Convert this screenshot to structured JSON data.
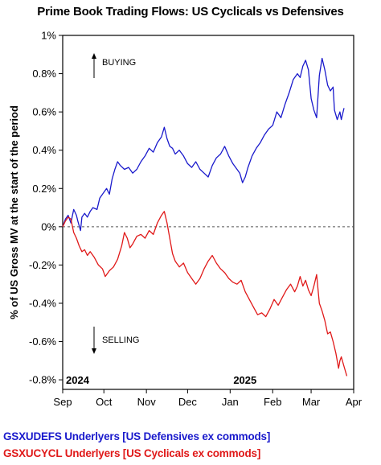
{
  "chart_data": {
    "type": "line",
    "title": "Prime Book Trading Flows: US Cyclicals vs Defensives",
    "ylabel": "% of US Gross MV at the start of the period",
    "xlabel": "",
    "x_ticks": [
      "Sep",
      "Oct",
      "Nov",
      "Dec",
      "Jan",
      "Feb",
      "Mar",
      "Apr"
    ],
    "year_labels": [
      "2024",
      "2025"
    ],
    "y_ticks": [
      "1%",
      "0.8%",
      "0.6%",
      "0.4%",
      "0.2%",
      "0%",
      "-0.2%",
      "-0.4%",
      "-0.6%",
      "-0.8%"
    ],
    "ylim": [
      -0.85,
      1.0
    ],
    "xlim": [
      "2024-09-01",
      "2025-04-01"
    ],
    "grid": false,
    "legend_position": "bottom",
    "annotations": [
      {
        "text": "BUYING",
        "direction": "up"
      },
      {
        "text": "SELLING",
        "direction": "down"
      }
    ],
    "series": [
      {
        "name": "GSXUDEFS Underlyers [US Defensives ex commods]",
        "color": "#1a1acc",
        "points": [
          [
            "2024-09-01",
            0.0
          ],
          [
            "2024-09-03",
            0.04
          ],
          [
            "2024-09-05",
            0.06
          ],
          [
            "2024-09-07",
            0.02
          ],
          [
            "2024-09-09",
            0.09
          ],
          [
            "2024-09-11",
            0.06
          ],
          [
            "2024-09-12",
            0.03
          ],
          [
            "2024-09-14",
            -0.02
          ],
          [
            "2024-09-15",
            0.05
          ],
          [
            "2024-09-17",
            0.07
          ],
          [
            "2024-09-19",
            0.05
          ],
          [
            "2024-09-21",
            0.08
          ],
          [
            "2024-09-23",
            0.1
          ],
          [
            "2024-09-26",
            0.09
          ],
          [
            "2024-09-28",
            0.15
          ],
          [
            "2024-10-01",
            0.18
          ],
          [
            "2024-10-03",
            0.2
          ],
          [
            "2024-10-05",
            0.17
          ],
          [
            "2024-10-07",
            0.25
          ],
          [
            "2024-10-09",
            0.3
          ],
          [
            "2024-10-11",
            0.34
          ],
          [
            "2024-10-13",
            0.32
          ],
          [
            "2024-10-16",
            0.3
          ],
          [
            "2024-10-19",
            0.31
          ],
          [
            "2024-10-22",
            0.28
          ],
          [
            "2024-10-25",
            0.3
          ],
          [
            "2024-10-28",
            0.34
          ],
          [
            "2024-10-31",
            0.37
          ],
          [
            "2024-11-03",
            0.41
          ],
          [
            "2024-11-06",
            0.39
          ],
          [
            "2024-11-09",
            0.44
          ],
          [
            "2024-11-12",
            0.47
          ],
          [
            "2024-11-14",
            0.52
          ],
          [
            "2024-11-16",
            0.46
          ],
          [
            "2024-11-18",
            0.42
          ],
          [
            "2024-11-20",
            0.41
          ],
          [
            "2024-11-22",
            0.38
          ],
          [
            "2024-11-25",
            0.4
          ],
          [
            "2024-11-28",
            0.37
          ],
          [
            "2024-12-01",
            0.33
          ],
          [
            "2024-12-04",
            0.31
          ],
          [
            "2024-12-07",
            0.34
          ],
          [
            "2024-12-10",
            0.3
          ],
          [
            "2024-12-13",
            0.28
          ],
          [
            "2024-12-16",
            0.26
          ],
          [
            "2024-12-19",
            0.32
          ],
          [
            "2024-12-22",
            0.36
          ],
          [
            "2024-12-25",
            0.38
          ],
          [
            "2024-12-28",
            0.42
          ],
          [
            "2024-12-31",
            0.37
          ],
          [
            "2025-01-03",
            0.33
          ],
          [
            "2025-01-06",
            0.3
          ],
          [
            "2025-01-08",
            0.28
          ],
          [
            "2025-01-10",
            0.23
          ],
          [
            "2025-01-12",
            0.26
          ],
          [
            "2025-01-14",
            0.31
          ],
          [
            "2025-01-17",
            0.37
          ],
          [
            "2025-01-20",
            0.41
          ],
          [
            "2025-01-23",
            0.44
          ],
          [
            "2025-01-26",
            0.48
          ],
          [
            "2025-01-29",
            0.51
          ],
          [
            "2025-02-01",
            0.53
          ],
          [
            "2025-02-04",
            0.6
          ],
          [
            "2025-02-07",
            0.57
          ],
          [
            "2025-02-10",
            0.64
          ],
          [
            "2025-02-13",
            0.7
          ],
          [
            "2025-02-16",
            0.77
          ],
          [
            "2025-02-19",
            0.8
          ],
          [
            "2025-02-21",
            0.78
          ],
          [
            "2025-02-23",
            0.84
          ],
          [
            "2025-02-25",
            0.87
          ],
          [
            "2025-02-27",
            0.82
          ],
          [
            "2025-03-01",
            0.67
          ],
          [
            "2025-03-03",
            0.61
          ],
          [
            "2025-03-05",
            0.57
          ],
          [
            "2025-03-07",
            0.79
          ],
          [
            "2025-03-09",
            0.88
          ],
          [
            "2025-03-11",
            0.82
          ],
          [
            "2025-03-13",
            0.74
          ],
          [
            "2025-03-15",
            0.71
          ],
          [
            "2025-03-17",
            0.73
          ],
          [
            "2025-03-18",
            0.61
          ],
          [
            "2025-03-20",
            0.56
          ],
          [
            "2025-03-22",
            0.6
          ],
          [
            "2025-03-23",
            0.56
          ],
          [
            "2025-03-25",
            0.62
          ]
        ]
      },
      {
        "name": "GSXUCYCL Underlyers [US Cyclicals ex commods]",
        "color": "#e01919",
        "points": [
          [
            "2024-09-01",
            0.0
          ],
          [
            "2024-09-03",
            0.03
          ],
          [
            "2024-09-05",
            0.05
          ],
          [
            "2024-09-07",
            0.04
          ],
          [
            "2024-09-09",
            -0.03
          ],
          [
            "2024-09-11",
            -0.06
          ],
          [
            "2024-09-13",
            -0.1
          ],
          [
            "2024-09-15",
            -0.13
          ],
          [
            "2024-09-17",
            -0.12
          ],
          [
            "2024-09-19",
            -0.15
          ],
          [
            "2024-09-21",
            -0.13
          ],
          [
            "2024-09-24",
            -0.16
          ],
          [
            "2024-09-27",
            -0.2
          ],
          [
            "2024-09-30",
            -0.22
          ],
          [
            "2024-10-02",
            -0.26
          ],
          [
            "2024-10-05",
            -0.23
          ],
          [
            "2024-10-08",
            -0.21
          ],
          [
            "2024-10-11",
            -0.17
          ],
          [
            "2024-10-14",
            -0.1
          ],
          [
            "2024-10-16",
            -0.03
          ],
          [
            "2024-10-18",
            -0.06
          ],
          [
            "2024-10-20",
            -0.11
          ],
          [
            "2024-10-22",
            -0.09
          ],
          [
            "2024-10-25",
            -0.05
          ],
          [
            "2024-10-28",
            -0.04
          ],
          [
            "2024-10-31",
            -0.06
          ],
          [
            "2024-11-03",
            -0.02
          ],
          [
            "2024-11-06",
            -0.04
          ],
          [
            "2024-11-09",
            0.02
          ],
          [
            "2024-11-12",
            0.06
          ],
          [
            "2024-11-14",
            0.08
          ],
          [
            "2024-11-16",
            0.02
          ],
          [
            "2024-11-18",
            -0.06
          ],
          [
            "2024-11-20",
            -0.14
          ],
          [
            "2024-11-22",
            -0.18
          ],
          [
            "2024-11-25",
            -0.21
          ],
          [
            "2024-11-28",
            -0.19
          ],
          [
            "2024-12-01",
            -0.24
          ],
          [
            "2024-12-04",
            -0.27
          ],
          [
            "2024-12-07",
            -0.3
          ],
          [
            "2024-12-10",
            -0.27
          ],
          [
            "2024-12-13",
            -0.22
          ],
          [
            "2024-12-16",
            -0.18
          ],
          [
            "2024-12-19",
            -0.15
          ],
          [
            "2024-12-22",
            -0.19
          ],
          [
            "2024-12-25",
            -0.22
          ],
          [
            "2024-12-28",
            -0.24
          ],
          [
            "2024-12-31",
            -0.27
          ],
          [
            "2025-01-03",
            -0.29
          ],
          [
            "2025-01-06",
            -0.3
          ],
          [
            "2025-01-09",
            -0.28
          ],
          [
            "2025-01-12",
            -0.34
          ],
          [
            "2025-01-15",
            -0.38
          ],
          [
            "2025-01-18",
            -0.42
          ],
          [
            "2025-01-21",
            -0.46
          ],
          [
            "2025-01-24",
            -0.45
          ],
          [
            "2025-01-27",
            -0.47
          ],
          [
            "2025-01-30",
            -0.43
          ],
          [
            "2025-02-02",
            -0.38
          ],
          [
            "2025-02-05",
            -0.41
          ],
          [
            "2025-02-08",
            -0.37
          ],
          [
            "2025-02-11",
            -0.33
          ],
          [
            "2025-02-14",
            -0.3
          ],
          [
            "2025-02-17",
            -0.34
          ],
          [
            "2025-02-19",
            -0.31
          ],
          [
            "2025-02-21",
            -0.26
          ],
          [
            "2025-02-23",
            -0.31
          ],
          [
            "2025-02-25",
            -0.28
          ],
          [
            "2025-02-27",
            -0.33
          ],
          [
            "2025-03-01",
            -0.36
          ],
          [
            "2025-03-03",
            -0.31
          ],
          [
            "2025-03-05",
            -0.25
          ],
          [
            "2025-03-07",
            -0.4
          ],
          [
            "2025-03-09",
            -0.44
          ],
          [
            "2025-03-11",
            -0.49
          ],
          [
            "2025-03-13",
            -0.56
          ],
          [
            "2025-03-15",
            -0.55
          ],
          [
            "2025-03-17",
            -0.6
          ],
          [
            "2025-03-19",
            -0.66
          ],
          [
            "2025-03-21",
            -0.74
          ],
          [
            "2025-03-22",
            -0.7
          ],
          [
            "2025-03-23",
            -0.68
          ],
          [
            "2025-03-25",
            -0.73
          ],
          [
            "2025-03-27",
            -0.78
          ]
        ]
      }
    ]
  }
}
